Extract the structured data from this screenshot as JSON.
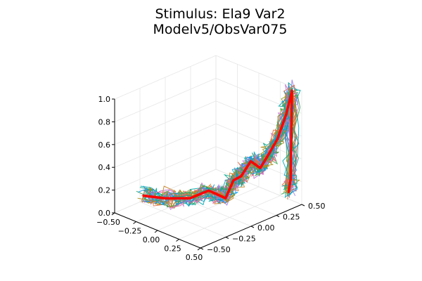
{
  "chart_data": {
    "type": "line3d",
    "title_lines": [
      "Stimulus: Ela9 Var2",
      "Modelv5/ObsVar075"
    ],
    "xlabel": "",
    "ylabel": "",
    "zlabel": "",
    "x_range": [
      -0.5,
      0.5
    ],
    "y_range": [
      -0.5,
      0.5
    ],
    "z_range": [
      0.0,
      1.0
    ],
    "x_ticks": [
      "−0.50",
      "−0.25",
      "0.00",
      "0.25",
      "0.50"
    ],
    "y_ticks": [
      "−0.50",
      "−0.25",
      "0.00",
      "0.25",
      "0.50"
    ],
    "z_ticks": [
      "0.0",
      "0.2",
      "0.4",
      "0.6",
      "0.8",
      "1.0"
    ],
    "grid": true,
    "legend": "none",
    "num_samples": 30,
    "sample_colors": [
      "#009AFA",
      "#E36F47",
      "#3EA44E",
      "#C371D2",
      "#AC8D18",
      "#00A9AD",
      "#ED5E93",
      "#C68225",
      "#00A98D",
      "#8E971D",
      "#00A8CB",
      "#9B7FE8"
    ],
    "stimulus": {
      "color": "#FF0000",
      "points": [
        [
          -0.28,
          -0.4,
          0.18
        ],
        [
          -0.15,
          -0.3,
          0.16
        ],
        [
          0.0,
          -0.18,
          0.16
        ],
        [
          0.1,
          -0.08,
          0.22
        ],
        [
          0.18,
          0.02,
          0.14
        ],
        [
          0.2,
          0.08,
          0.28
        ],
        [
          0.22,
          0.14,
          0.3
        ],
        [
          0.26,
          0.2,
          0.42
        ],
        [
          0.3,
          0.26,
          0.35
        ],
        [
          0.33,
          0.32,
          0.46
        ],
        [
          0.36,
          0.38,
          0.58
        ],
        [
          0.39,
          0.44,
          0.78
        ],
        [
          0.41,
          0.48,
          0.98
        ],
        [
          0.43,
          0.45,
          0.22
        ],
        [
          0.44,
          0.42,
          0.12
        ]
      ]
    }
  }
}
